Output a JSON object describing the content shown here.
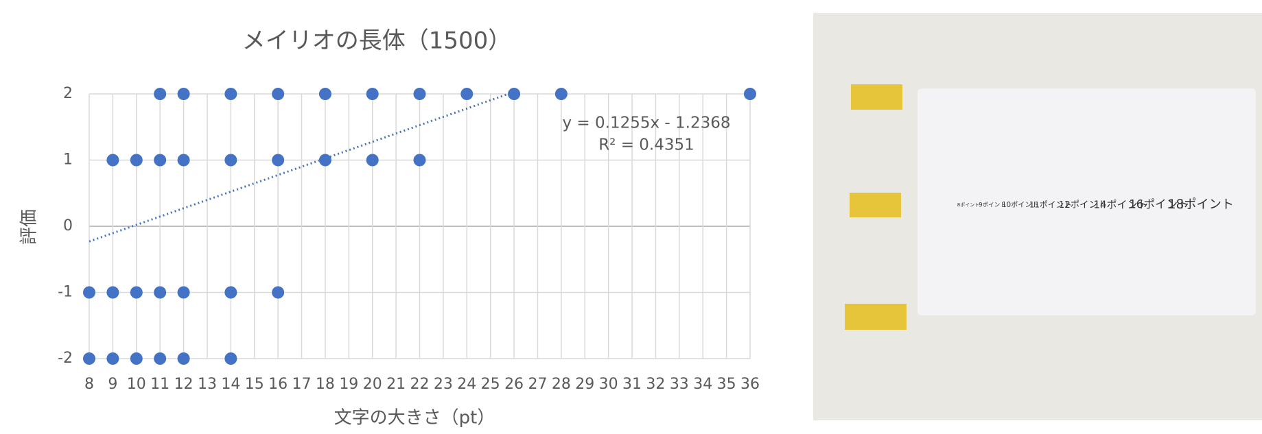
{
  "chart_data": {
    "type": "scatter",
    "title": "メイリオの長体（1500）",
    "x_label": "文字の大きさ（pt）",
    "y_label": "評価",
    "xlim": [
      8,
      36
    ],
    "xticks": [
      8,
      9,
      10,
      11,
      12,
      13,
      14,
      15,
      16,
      17,
      18,
      19,
      20,
      21,
      22,
      23,
      24,
      25,
      26,
      27,
      28,
      29,
      30,
      31,
      32,
      33,
      34,
      35,
      36
    ],
    "ylim": [
      -2,
      2
    ],
    "yticks": [
      -2,
      -1,
      0,
      1,
      2
    ],
    "grid": true,
    "series": [
      {
        "color": "#4472c4",
        "x": [
          11,
          12,
          14,
          16,
          18,
          20,
          22,
          24,
          26,
          28,
          36,
          9,
          10,
          11,
          12,
          14,
          16,
          18,
          20,
          22,
          8,
          9,
          10,
          11,
          12,
          14,
          16,
          8,
          9,
          10,
          11,
          12,
          14
        ],
        "values": [
          2,
          2,
          2,
          2,
          2,
          2,
          2,
          2,
          2,
          2,
          2,
          1,
          1,
          1,
          1,
          1,
          1,
          1,
          1,
          1,
          -1,
          -1,
          -1,
          -1,
          -1,
          -1,
          -1,
          -2,
          -2,
          -2,
          -2,
          -2,
          -2
        ]
      }
    ],
    "trendline": {
      "color": "#4472c4",
      "x": [
        8,
        26
      ],
      "values": [
        -0.23,
        2.03
      ],
      "equation": "y = 0.1255x - 1.2368",
      "r2": "R² = 0.4351"
    }
  },
  "photo": {
    "labels": [
      "8ポイント",
      "9ポイント",
      "10ポイント",
      "11ポイント",
      "12ポイント",
      "14ポイント",
      "16ポイント",
      "18ポイント"
    ]
  }
}
